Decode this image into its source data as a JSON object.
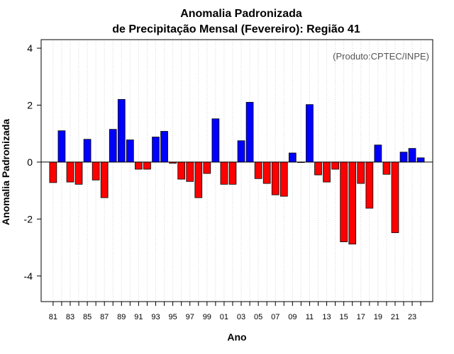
{
  "chart_data": {
    "type": "bar",
    "title": "Anomalia Padronizada",
    "subtitle": "de Precipitação Mensal (Fevereiro): Região 41",
    "xlabel": "Ano",
    "ylabel": "Anomalia Padronizada",
    "annotation": "(Produto:CPTEC/INPE)",
    "ylim": [
      -4.9,
      4.3
    ],
    "yticks": [
      -4,
      -2,
      0,
      2,
      4
    ],
    "xlim": [
      1979.6,
      2025.4
    ],
    "years": [
      1981,
      1982,
      1983,
      1984,
      1985,
      1986,
      1987,
      1988,
      1989,
      1990,
      1991,
      1992,
      1993,
      1994,
      1995,
      1996,
      1997,
      1998,
      1999,
      2000,
      2001,
      2002,
      2003,
      2004,
      2005,
      2006,
      2007,
      2008,
      2009,
      2010,
      2011,
      2012,
      2013,
      2014,
      2015,
      2016,
      2017,
      2018,
      2019,
      2020,
      2021,
      2022,
      2023,
      2024
    ],
    "values": [
      -0.72,
      1.1,
      -0.7,
      -0.78,
      0.8,
      -0.63,
      -1.25,
      1.15,
      2.2,
      0.78,
      -0.25,
      -0.25,
      0.88,
      1.08,
      -0.04,
      -0.6,
      -0.68,
      -1.25,
      -0.4,
      1.52,
      -0.78,
      -0.78,
      0.75,
      2.1,
      -0.58,
      -0.75,
      -1.15,
      -1.2,
      0.32,
      0.0,
      2.02,
      -0.45,
      -0.7,
      -0.25,
      -2.8,
      -2.88,
      -0.75,
      -1.62,
      0.6,
      -0.43,
      -2.48,
      0.35,
      0.48,
      0.15
    ],
    "xtick_labels": [
      "81",
      "83",
      "85",
      "87",
      "89",
      "91",
      "93",
      "95",
      "97",
      "99",
      "01",
      "03",
      "05",
      "07",
      "09",
      "11",
      "13",
      "15",
      "17",
      "19",
      "21",
      "23"
    ],
    "positive_color": "#0000ff",
    "negative_color": "#ff0000",
    "grid": "vertical dotted"
  }
}
